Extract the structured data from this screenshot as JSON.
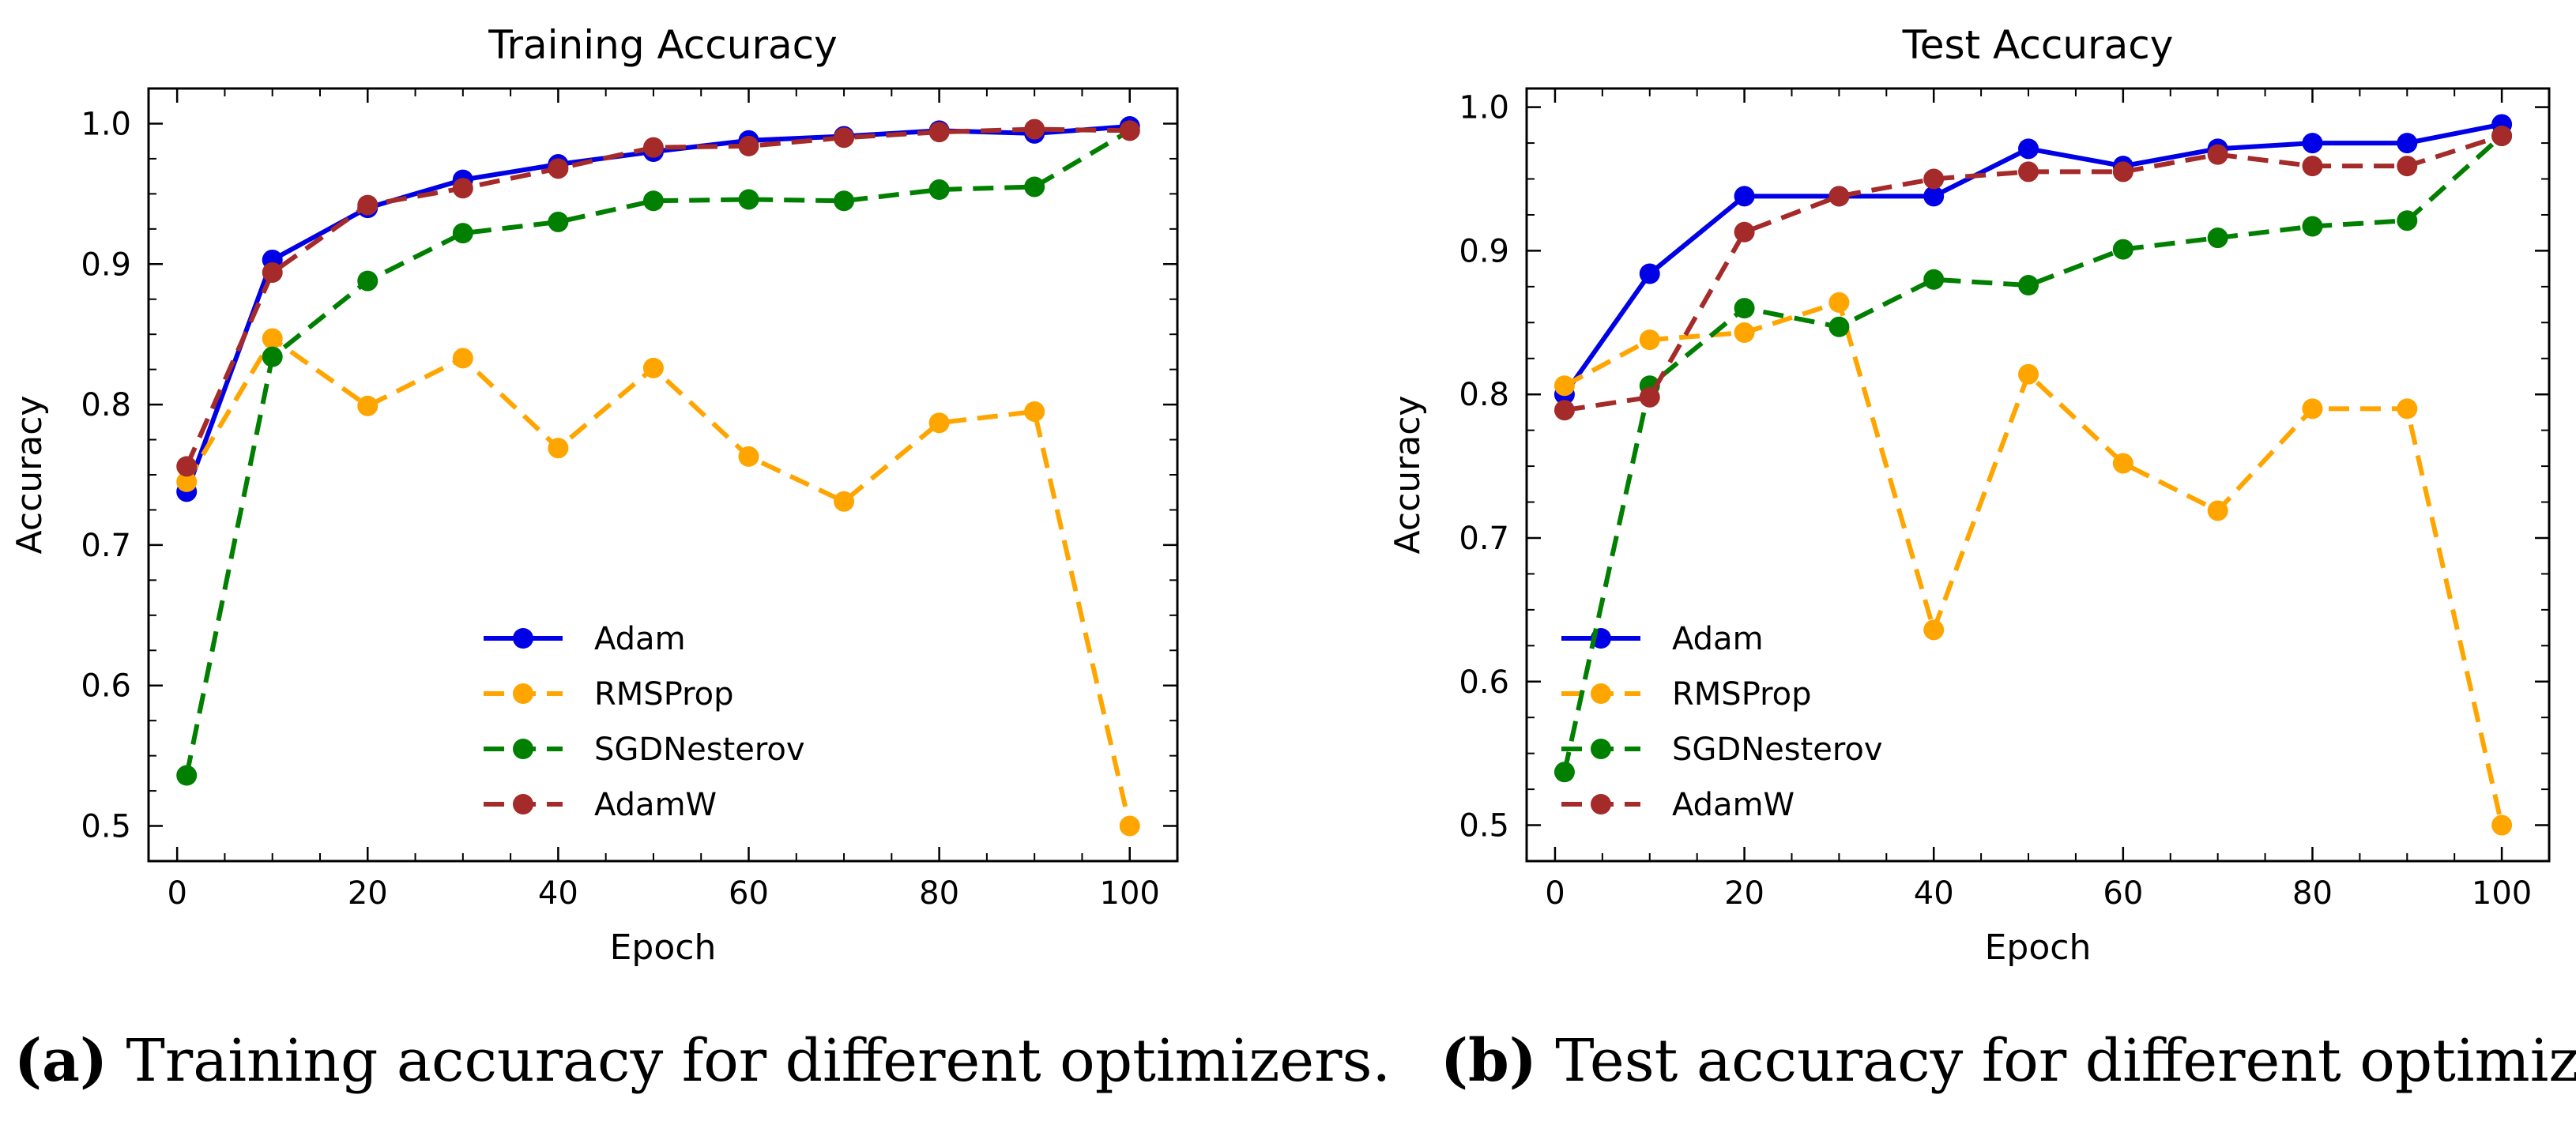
{
  "chart_data": [
    {
      "type": "line",
      "title": "Training Accuracy",
      "xlabel": "Epoch",
      "ylabel": "Accuracy",
      "xlim": [
        -3,
        105
      ],
      "ylim": [
        0.475,
        1.025
      ],
      "xticks": [
        0,
        20,
        40,
        60,
        80,
        100
      ],
      "yticks": [
        0.5,
        0.6,
        0.7,
        0.8,
        0.9,
        1.0
      ],
      "ytick_labels": [
        "0.5",
        "0.6",
        "0.7",
        "0.8",
        "0.9",
        "1.0"
      ],
      "grid": false,
      "legend": "bottom-center",
      "x": [
        1,
        10,
        20,
        30,
        40,
        50,
        60,
        70,
        80,
        90,
        100
      ],
      "series": [
        {
          "name": "Adam",
          "color": "#0000e6",
          "style": "solid",
          "values": [
            0.738,
            0.903,
            0.94,
            0.96,
            0.971,
            0.98,
            0.988,
            0.991,
            0.995,
            0.993,
            0.998
          ]
        },
        {
          "name": "RMSProp",
          "color": "#ffa500",
          "style": "dashed",
          "values": [
            0.745,
            0.847,
            0.799,
            0.833,
            0.769,
            0.826,
            0.763,
            0.731,
            0.787,
            0.795,
            0.5
          ]
        },
        {
          "name": "SGDNesterov",
          "color": "#007f00",
          "style": "dashed",
          "values": [
            0.536,
            0.834,
            0.888,
            0.922,
            0.93,
            0.945,
            0.946,
            0.945,
            0.953,
            0.955,
            0.995
          ]
        },
        {
          "name": "AdamW",
          "color": "#a52a2a",
          "style": "dashed",
          "values": [
            0.756,
            0.894,
            0.942,
            0.954,
            0.968,
            0.983,
            0.984,
            0.99,
            0.994,
            0.996,
            0.995
          ]
        }
      ]
    },
    {
      "type": "line",
      "title": "Test Accuracy",
      "xlabel": "Epoch",
      "ylabel": "Accuracy",
      "xlim": [
        -3,
        105
      ],
      "ylim": [
        0.475,
        1.013
      ],
      "xticks": [
        0,
        20,
        40,
        60,
        80,
        100
      ],
      "yticks": [
        0.5,
        0.6,
        0.7,
        0.8,
        0.9,
        1.0
      ],
      "ytick_labels": [
        "0.5",
        "0.6",
        "0.7",
        "0.8",
        "0.9",
        "1.0"
      ],
      "grid": false,
      "legend": "bottom-left",
      "x": [
        1,
        10,
        20,
        30,
        40,
        50,
        60,
        70,
        80,
        90,
        100
      ],
      "series": [
        {
          "name": "Adam",
          "color": "#0000e6",
          "style": "solid",
          "values": [
            0.8,
            0.884,
            0.938,
            0.938,
            0.938,
            0.971,
            0.959,
            0.971,
            0.975,
            0.975,
            0.988
          ]
        },
        {
          "name": "RMSProp",
          "color": "#ffa500",
          "style": "dashed",
          "values": [
            0.806,
            0.838,
            0.843,
            0.864,
            0.636,
            0.814,
            0.752,
            0.719,
            0.79,
            0.79,
            0.5
          ]
        },
        {
          "name": "SGDNesterov",
          "color": "#007f00",
          "style": "dashed",
          "values": [
            0.537,
            0.806,
            0.86,
            0.847,
            0.88,
            0.876,
            0.901,
            0.909,
            0.917,
            0.921,
            0.98
          ]
        },
        {
          "name": "AdamW",
          "color": "#a52a2a",
          "style": "dashed",
          "values": [
            0.789,
            0.798,
            0.913,
            0.938,
            0.95,
            0.955,
            0.955,
            0.967,
            0.959,
            0.959,
            0.98
          ]
        }
      ]
    }
  ],
  "captions": [
    {
      "tag": "(a)",
      "text": " Training accuracy for different optimizers."
    },
    {
      "tag": "(b)",
      "text": " Test accuracy for different optimizers."
    }
  ]
}
